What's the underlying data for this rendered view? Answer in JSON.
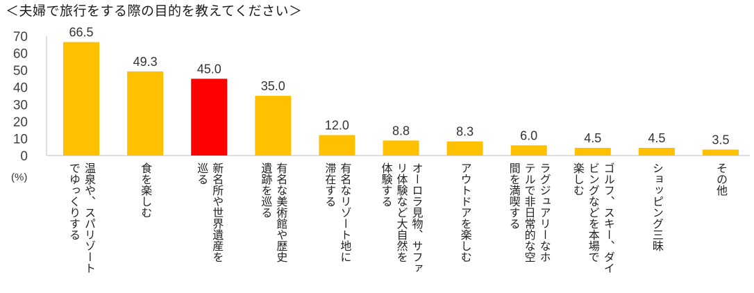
{
  "title": "＜夫婦で旅行をする際の目的を教えてください＞",
  "colors": {
    "bar": "#FFC000",
    "highlight": "#FF0000",
    "axis": "#BFBFBF"
  },
  "chart_data": {
    "type": "bar",
    "title": "＜夫婦で旅行をする際の目的を教えてください＞",
    "unit_label": "(%)",
    "ylim": [
      0,
      70
    ],
    "yticks": [
      "0",
      "10",
      "20",
      "30",
      "40",
      "50",
      "60",
      "70"
    ],
    "grid": false,
    "highlight_index": 2,
    "categories": [
      "温泉や、スパリゾート\nでゆっくりする",
      "食を楽しむ",
      "新名所や世界遺産を\n巡る",
      "有名な美術館や歴史\n遺跡を巡る",
      "有名なリゾート地に\n滞在する",
      "オーロラ見物、サファ\nリ体験など大自然を\n体験する",
      "アウトドアを楽しむ",
      "ラグジュアリーなホ\nテルで非日常的な空\n間を満喫する",
      "ゴルフ、スキー、ダイ\nビングなどを本場で\n楽しむ",
      "ショッピング三昧",
      "その他"
    ],
    "values": [
      66.5,
      49.3,
      45.0,
      35.0,
      12.0,
      8.8,
      8.3,
      6.0,
      4.5,
      4.5,
      3.5
    ],
    "value_labels": [
      "66.5",
      "49.3",
      "45.0",
      "35.0",
      "12.0",
      "8.8",
      "8.3",
      "6.0",
      "4.5",
      "4.5",
      "3.5"
    ]
  }
}
